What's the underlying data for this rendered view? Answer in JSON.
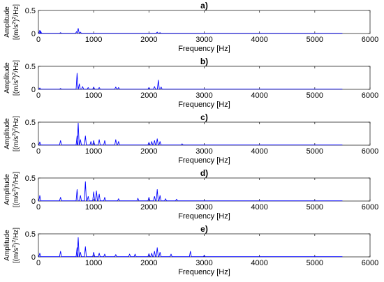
{
  "colors": {
    "series": "#0000ff",
    "axes": "#262626"
  },
  "chart_data": [
    {
      "type": "line",
      "title": "a)",
      "xlabel": "Frequency [Hz]",
      "ylabel_line1": "Amplitude",
      "ylabel_line2": "[(m/s",
      "ylabel_sup1": "2",
      "ylabel_mid": ")",
      "ylabel_sup2": "2",
      "ylabel_end": "/Hz]",
      "xlim": [
        0,
        6000
      ],
      "ylim": [
        0,
        0.5
      ],
      "xticks": [
        0,
        1000,
        2000,
        3000,
        4000,
        5000,
        6000
      ],
      "yticks": [
        0,
        0.5
      ],
      "x_end": 5500,
      "floor": 0.004,
      "peaks": [
        [
          25,
          0.07
        ],
        [
          40,
          0.05
        ],
        [
          400,
          0.02
        ],
        [
          690,
          0.04
        ],
        [
          720,
          0.11
        ],
        [
          760,
          0.03
        ],
        [
          2150,
          0.03
        ],
        [
          2200,
          0.02
        ]
      ]
    },
    {
      "type": "line",
      "title": "b)",
      "xlabel": "Frequency [Hz]",
      "ylabel_line1": "Amplitude",
      "ylabel_line2": "[(m/s",
      "ylabel_sup1": "2",
      "ylabel_mid": ")",
      "ylabel_sup2": "2",
      "ylabel_end": "/Hz]",
      "xlim": [
        0,
        6000
      ],
      "ylim": [
        0,
        0.5
      ],
      "xticks": [
        0,
        1000,
        2000,
        3000,
        4000,
        5000,
        6000
      ],
      "yticks": [
        0,
        0.5
      ],
      "x_end": 5500,
      "floor": 0.004,
      "peaks": [
        [
          25,
          0.03
        ],
        [
          400,
          0.02
        ],
        [
          700,
          0.35
        ],
        [
          740,
          0.12
        ],
        [
          800,
          0.06
        ],
        [
          900,
          0.04
        ],
        [
          1000,
          0.05
        ],
        [
          1100,
          0.04
        ],
        [
          1400,
          0.05
        ],
        [
          1450,
          0.04
        ],
        [
          2000,
          0.04
        ],
        [
          2100,
          0.06
        ],
        [
          2170,
          0.2
        ],
        [
          2220,
          0.05
        ]
      ]
    },
    {
      "type": "line",
      "title": "c)",
      "xlabel": "Frequency [Hz]",
      "ylabel_line1": "Amplitude",
      "ylabel_line2": "[(m/s",
      "ylabel_sup1": "2",
      "ylabel_mid": ")",
      "ylabel_sup2": "2",
      "ylabel_end": "/Hz]",
      "xlim": [
        0,
        6000
      ],
      "ylim": [
        0,
        0.5
      ],
      "xticks": [
        0,
        1000,
        2000,
        3000,
        4000,
        5000,
        6000
      ],
      "yticks": [
        0,
        0.5
      ],
      "x_end": 5500,
      "floor": 0.004,
      "peaks": [
        [
          25,
          0.07
        ],
        [
          400,
          0.1
        ],
        [
          700,
          0.2
        ],
        [
          720,
          0.48
        ],
        [
          760,
          0.12
        ],
        [
          850,
          0.2
        ],
        [
          950,
          0.08
        ],
        [
          1000,
          0.1
        ],
        [
          1100,
          0.12
        ],
        [
          1200,
          0.1
        ],
        [
          1400,
          0.12
        ],
        [
          1450,
          0.08
        ],
        [
          2000,
          0.06
        ],
        [
          2050,
          0.08
        ],
        [
          2100,
          0.1
        ],
        [
          2150,
          0.14
        ],
        [
          2200,
          0.08
        ],
        [
          2600,
          0.03
        ]
      ]
    },
    {
      "type": "line",
      "title": "d)",
      "xlabel": "Frequency [Hz]",
      "ylabel_line1": "Amplitude",
      "ylabel_line2": "[(m/s",
      "ylabel_sup1": "2",
      "ylabel_mid": ")",
      "ylabel_sup2": "2",
      "ylabel_end": "/Hz]",
      "xlim": [
        0,
        6000
      ],
      "ylim": [
        0,
        0.5
      ],
      "xticks": [
        0,
        1000,
        2000,
        3000,
        4000,
        5000,
        6000
      ],
      "yticks": [
        0,
        0.5
      ],
      "x_end": 5500,
      "floor": 0.004,
      "peaks": [
        [
          25,
          0.12
        ],
        [
          400,
          0.08
        ],
        [
          700,
          0.25
        ],
        [
          760,
          0.12
        ],
        [
          850,
          0.42
        ],
        [
          900,
          0.1
        ],
        [
          1000,
          0.2
        ],
        [
          1050,
          0.22
        ],
        [
          1100,
          0.15
        ],
        [
          1200,
          0.08
        ],
        [
          1450,
          0.05
        ],
        [
          1800,
          0.06
        ],
        [
          2000,
          0.08
        ],
        [
          2100,
          0.1
        ],
        [
          2150,
          0.25
        ],
        [
          2200,
          0.12
        ],
        [
          2300,
          0.05
        ],
        [
          2500,
          0.04
        ]
      ]
    },
    {
      "type": "line",
      "title": "e)",
      "xlabel": "Frequency [Hz]",
      "ylabel_line1": "Amplitude",
      "ylabel_line2": "[(m/s",
      "ylabel_sup1": "2",
      "ylabel_mid": ")",
      "ylabel_sup2": "2",
      "ylabel_end": "/Hz]",
      "xlim": [
        0,
        6000
      ],
      "ylim": [
        0,
        0.5
      ],
      "xticks": [
        0,
        1000,
        2000,
        3000,
        4000,
        5000,
        6000
      ],
      "yticks": [
        0,
        0.5
      ],
      "x_end": 5500,
      "floor": 0.004,
      "peaks": [
        [
          25,
          0.08
        ],
        [
          400,
          0.12
        ],
        [
          700,
          0.2
        ],
        [
          720,
          0.42
        ],
        [
          760,
          0.1
        ],
        [
          850,
          0.22
        ],
        [
          1000,
          0.1
        ],
        [
          1100,
          0.08
        ],
        [
          1200,
          0.06
        ],
        [
          1400,
          0.05
        ],
        [
          1650,
          0.06
        ],
        [
          1750,
          0.06
        ],
        [
          2000,
          0.07
        ],
        [
          2050,
          0.08
        ],
        [
          2100,
          0.12
        ],
        [
          2150,
          0.2
        ],
        [
          2200,
          0.1
        ],
        [
          2400,
          0.06
        ],
        [
          2750,
          0.12
        ],
        [
          3000,
          0.03
        ]
      ]
    }
  ]
}
